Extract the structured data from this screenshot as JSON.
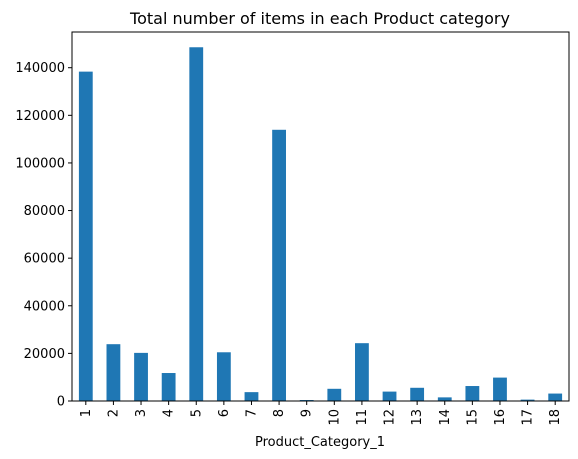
{
  "chart_data": {
    "type": "bar",
    "title": "Total number of items in each Product category",
    "xlabel": "Product_Category_1",
    "ylabel": "",
    "categories": [
      "1",
      "2",
      "3",
      "4",
      "5",
      "6",
      "7",
      "8",
      "9",
      "10",
      "11",
      "12",
      "13",
      "14",
      "15",
      "16",
      "17",
      "18"
    ],
    "values": [
      138353,
      23864,
      20213,
      11753,
      148592,
      20466,
      3721,
      113925,
      410,
      5125,
      24287,
      3947,
      5549,
      1523,
      6290,
      9828,
      578,
      3125
    ],
    "yticks": [
      "0",
      "20000",
      "40000",
      "60000",
      "80000",
      "100000",
      "120000",
      "140000"
    ],
    "ylim": [
      0,
      155000
    ],
    "bar_color": "#1f77b4",
    "grid": false,
    "legend": "none"
  }
}
